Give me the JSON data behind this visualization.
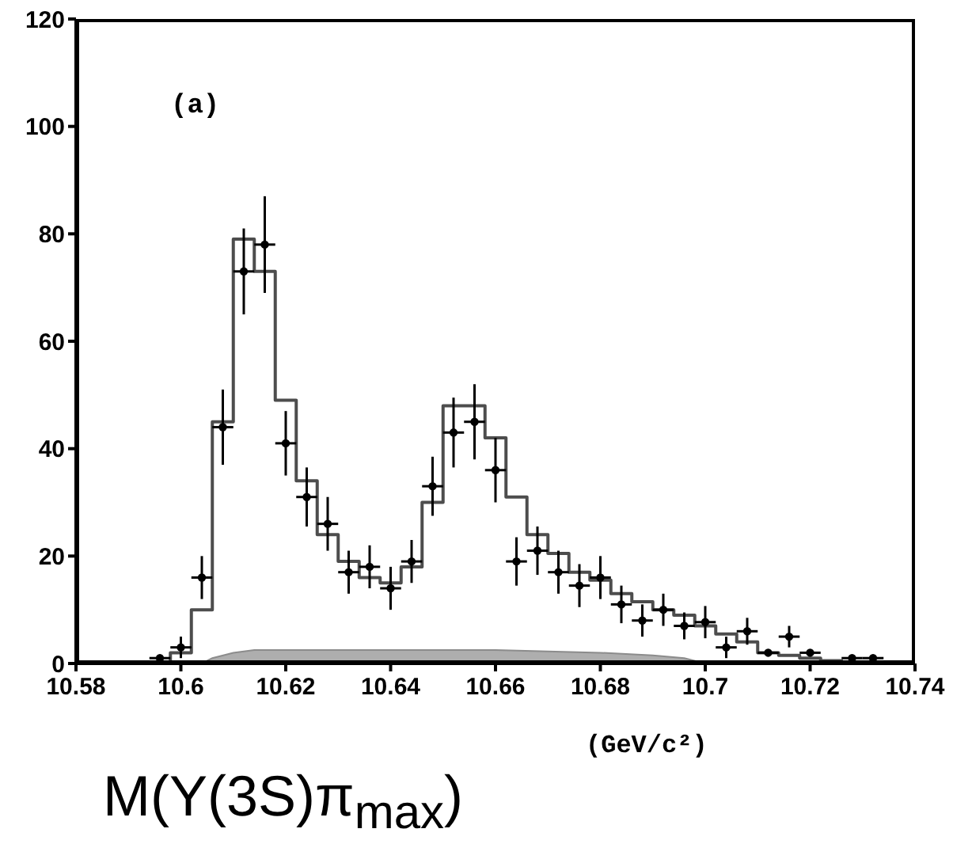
{
  "chart_data": {
    "type": "scatter",
    "xlabel": "(GeV/c²)",
    "annotations": [
      "(a)",
      "M(Υ(3S)π$_{max}$)"
    ],
    "xlim": [
      10.58,
      10.74
    ],
    "xticks": [
      10.58,
      10.6,
      10.62,
      10.64,
      10.66,
      10.68,
      10.7,
      10.72,
      10.74
    ],
    "ylim": [
      0,
      120
    ],
    "yticks": [
      0,
      20,
      40,
      60,
      80,
      100,
      120
    ],
    "grid": false,
    "legend": false,
    "series": [
      {
        "type": "area",
        "color": "#8c8c8c",
        "x": [
          10.604,
          10.606,
          10.61,
          10.614,
          10.62,
          10.64,
          10.66,
          10.68,
          10.69,
          10.696,
          10.7
        ],
        "values": [
          0,
          1,
          2,
          2.5,
          2.5,
          2.5,
          2.5,
          2,
          1.5,
          1,
          0
        ]
      },
      {
        "type": "step",
        "color": "#4d4d4d",
        "x": [
          10.596,
          10.6,
          10.604,
          10.608,
          10.612,
          10.616,
          10.62,
          10.624,
          10.628,
          10.632,
          10.636,
          10.64,
          10.644,
          10.648,
          10.652,
          10.656,
          10.66,
          10.664,
          10.668,
          10.672,
          10.676,
          10.68,
          10.684,
          10.688,
          10.692,
          10.696,
          10.7,
          10.704,
          10.708,
          10.712,
          10.716,
          10.72,
          10.724,
          10.728
        ],
        "values": [
          0,
          2,
          10,
          45,
          79,
          73,
          49,
          34,
          24,
          19,
          16,
          15,
          18,
          30,
          48,
          48,
          42,
          31,
          24,
          20.5,
          17,
          15.5,
          13,
          11.5,
          10,
          9,
          7,
          5.5,
          4,
          2,
          1.5,
          1,
          0.5,
          0
        ]
      },
      {
        "color": "#000000",
        "marker": "circle",
        "x": [
          10.596,
          10.6,
          10.604,
          10.608,
          10.612,
          10.616,
          10.62,
          10.624,
          10.628,
          10.632,
          10.636,
          10.64,
          10.644,
          10.648,
          10.652,
          10.656,
          10.66,
          10.664,
          10.668,
          10.672,
          10.676,
          10.68,
          10.684,
          10.688,
          10.692,
          10.696,
          10.7,
          10.704,
          10.708,
          10.712,
          10.716,
          10.72,
          10.728,
          10.732
        ],
        "values": [
          1,
          3,
          16,
          44,
          73,
          78,
          41,
          31,
          26,
          17,
          18,
          14,
          19,
          33,
          43,
          45,
          36,
          19,
          21,
          17,
          14.5,
          16,
          11,
          8,
          10,
          7,
          7.7,
          3,
          6,
          2,
          5,
          2,
          1,
          1
        ],
        "errors": [
          null,
          2,
          4,
          7,
          8,
          9,
          6,
          5.5,
          5,
          4,
          4,
          4,
          4,
          5.5,
          6.5,
          7,
          6,
          4.5,
          4.5,
          4,
          4,
          4,
          3.5,
          3,
          3,
          2.5,
          3,
          2,
          2.5,
          null,
          2,
          null,
          null,
          null
        ],
        "xerrors": [
          0.002,
          0.002,
          0.002,
          0.002,
          0.002,
          0.002,
          0.002,
          0.002,
          0.002,
          0.002,
          0.002,
          0.002,
          0.002,
          0.002,
          0.002,
          0.002,
          0.002,
          0.002,
          0.002,
          0.002,
          0.002,
          0.002,
          0.002,
          0.002,
          0.002,
          0.002,
          0.002,
          0.002,
          0.002,
          0.002,
          0.002,
          0.002,
          0.002,
          0.002
        ]
      }
    ]
  }
}
